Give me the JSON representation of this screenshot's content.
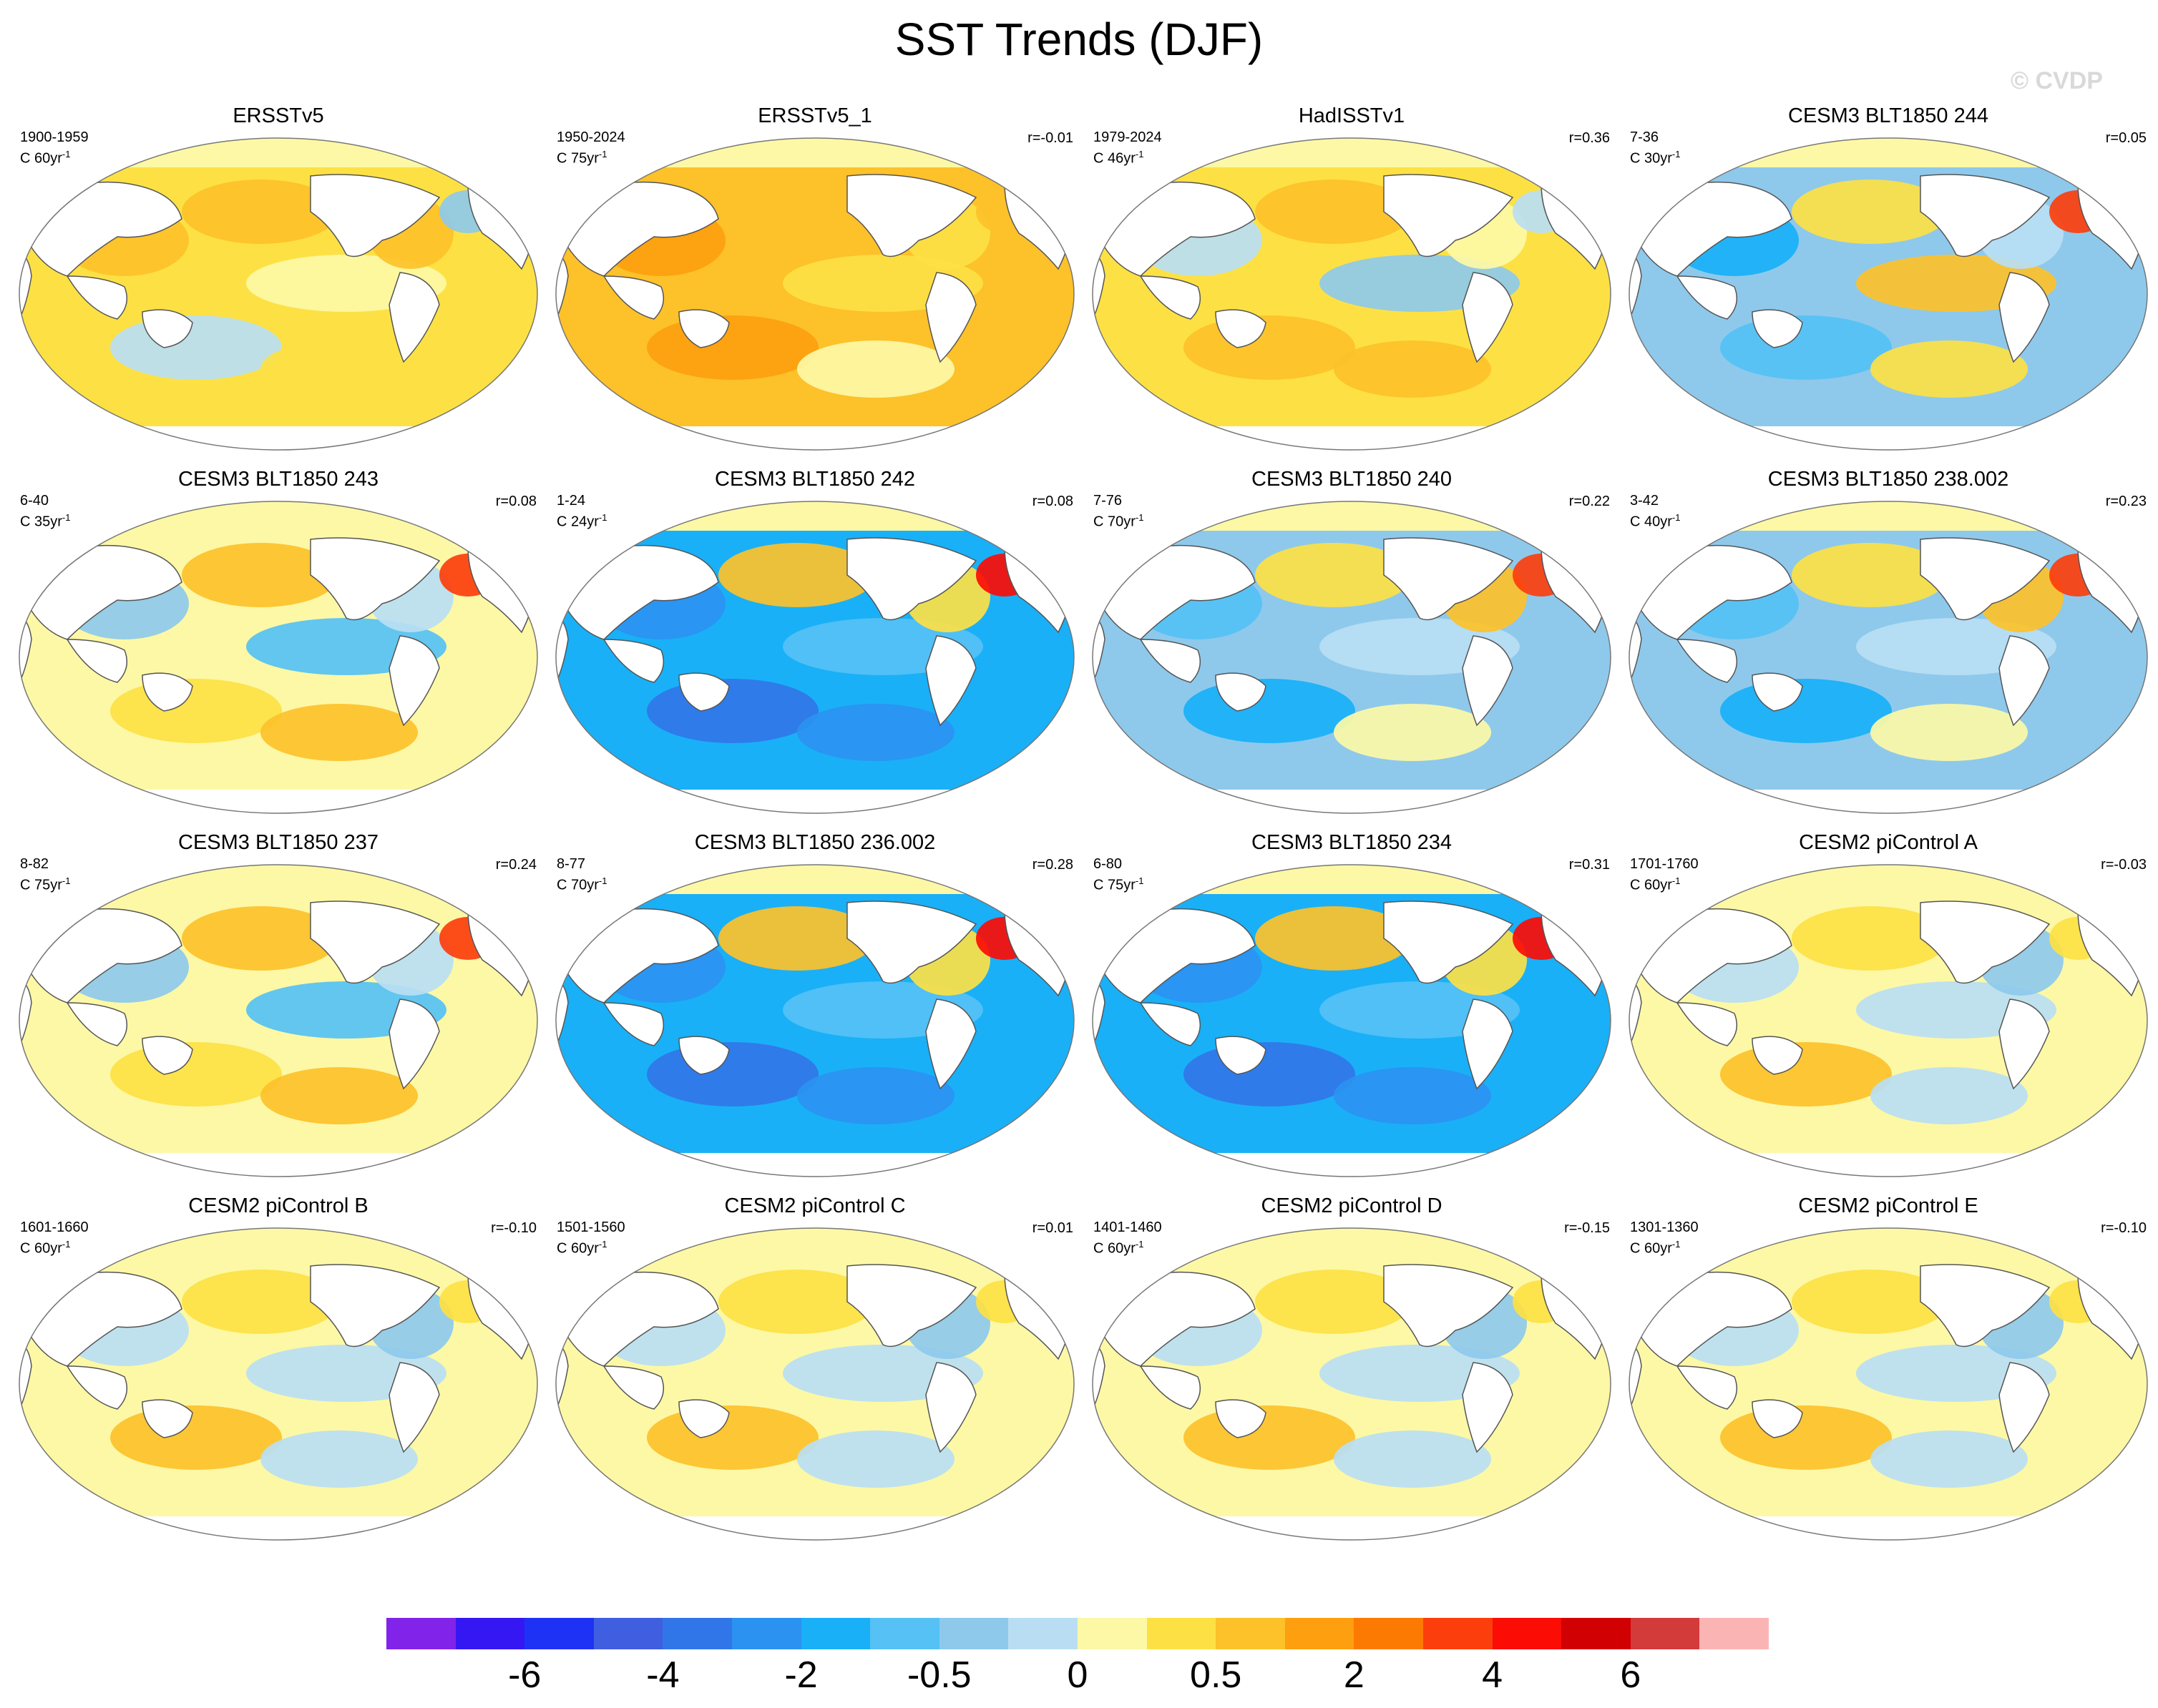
{
  "title": "SST Trends (DJF)",
  "watermark": "© CVDP",
  "colors": {
    "levels": [
      "#8223ea",
      "#3517f3",
      "#1e32f5",
      "#3f5ee0",
      "#3176e8",
      "#2b92f1",
      "#19b0f7",
      "#55c1f5",
      "#8ec9ec",
      "#b9def3",
      "#fdf8a6",
      "#fde144",
      "#fdc12a",
      "#fd9f0e",
      "#fd7a02",
      "#fc3e0d",
      "#fb0c05",
      "#d10002",
      "#d33a3a",
      "#fbb4b4"
    ],
    "land": "#ffffff",
    "coast": "#555555"
  },
  "colorbar": {
    "labels": [
      "-6",
      "-4",
      "-2",
      "-0.5",
      "0",
      "0.5",
      "2",
      "4",
      "6"
    ]
  },
  "panels": [
    {
      "title": "ERSSTv5",
      "period": "1900-1959",
      "units": "C 60yr",
      "exp": "-1",
      "corr": "",
      "pattern": "warm"
    },
    {
      "title": "ERSSTv5_1",
      "period": "1950-2024",
      "units": "C 75yr",
      "exp": "-1",
      "corr": "r=-0.01",
      "pattern": "warmstrong"
    },
    {
      "title": "HadISSTv1",
      "period": "1979-2024",
      "units": "C 46yr",
      "exp": "-1",
      "corr": "r=0.36",
      "pattern": "warmlaCina"
    },
    {
      "title": "CESM3 BLT1850 244",
      "period": "7-36",
      "units": "C 30yr",
      "exp": "-1",
      "corr": "r=0.05",
      "pattern": "coolmix"
    },
    {
      "title": "CESM3 BLT1850 243",
      "period": "6-40",
      "units": "C 35yr",
      "exp": "-1",
      "corr": "r=0.08",
      "pattern": "mixgulf"
    },
    {
      "title": "CESM3 BLT1850 242",
      "period": "1-24",
      "units": "C 24yr",
      "exp": "-1",
      "corr": "r=0.08",
      "pattern": "cold"
    },
    {
      "title": "CESM3 BLT1850 240",
      "period": "7-76",
      "units": "C 70yr",
      "exp": "-1",
      "corr": "r=0.22",
      "pattern": "coolgulf"
    },
    {
      "title": "CESM3 BLT1850 238.002",
      "period": "3-42",
      "units": "C 40yr",
      "exp": "-1",
      "corr": "r=0.23",
      "pattern": "coolgulf"
    },
    {
      "title": "CESM3 BLT1850 237",
      "period": "8-82",
      "units": "C 75yr",
      "exp": "-1",
      "corr": "r=0.24",
      "pattern": "mixgulf"
    },
    {
      "title": "CESM3 BLT1850 236.002",
      "period": "8-77",
      "units": "C 70yr",
      "exp": "-1",
      "corr": "r=0.28",
      "pattern": "cold"
    },
    {
      "title": "CESM3 BLT1850 234",
      "period": "6-80",
      "units": "C 75yr",
      "exp": "-1",
      "corr": "r=0.31",
      "pattern": "cold"
    },
    {
      "title": "CESM2 piControl A",
      "period": "1701-1760",
      "units": "C 60yr",
      "exp": "-1",
      "corr": "r=-0.03",
      "pattern": "neutral"
    },
    {
      "title": "CESM2 piControl B",
      "period": "1601-1660",
      "units": "C 60yr",
      "exp": "-1",
      "corr": "r=-0.10",
      "pattern": "neutral"
    },
    {
      "title": "CESM2 piControl C",
      "period": "1501-1560",
      "units": "C 60yr",
      "exp": "-1",
      "corr": "r=0.01",
      "pattern": "neutral"
    },
    {
      "title": "CESM2 piControl D",
      "period": "1401-1460",
      "units": "C 60yr",
      "exp": "-1",
      "corr": "r=-0.15",
      "pattern": "neutral"
    },
    {
      "title": "CESM2 piControl E",
      "period": "1301-1360",
      "units": "C 60yr",
      "exp": "-1",
      "corr": "r=-0.10",
      "pattern": "neutral"
    }
  ]
}
